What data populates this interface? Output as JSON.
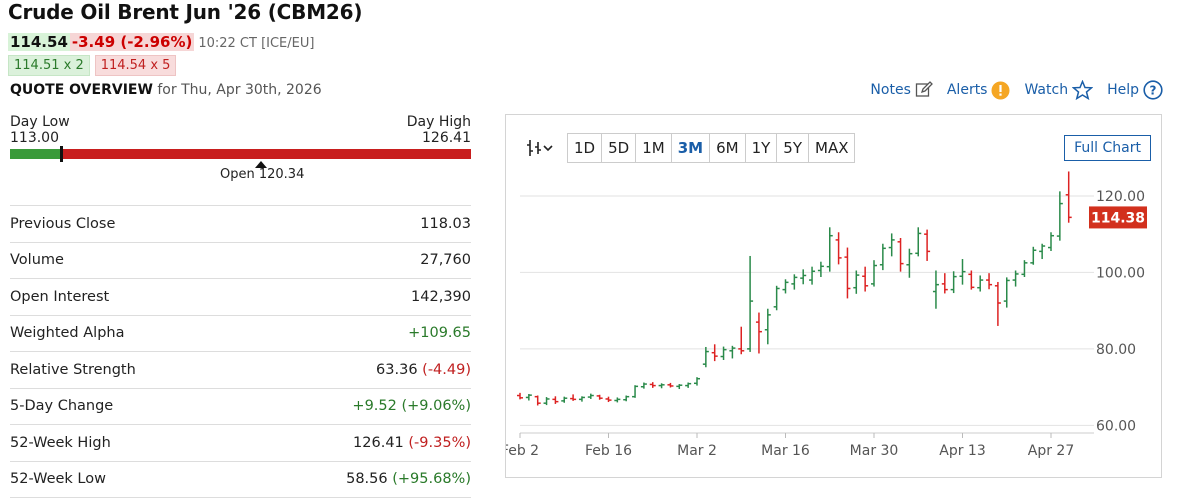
{
  "header": {
    "title": "Crude Oil Brent Jun '26 (CBM26)",
    "price": "114.54",
    "change": "-3.49 (-2.96%)",
    "time": "10:22 CT [ICE/EU]",
    "bid": "114.51 x 2",
    "ask": "114.54 x 5"
  },
  "overview": {
    "label": "QUOTE OVERVIEW",
    "date": "for Thu, Apr 30th, 2026"
  },
  "links": [
    "Notes",
    "Alerts",
    "Watch",
    "Help"
  ],
  "day_range": {
    "low_label": "Day Low",
    "high_label": "Day High",
    "low": "113.00",
    "high": "126.41",
    "open": "Open 120.34",
    "position": 0.11
  },
  "stats": [
    {
      "label": "Previous Close",
      "value": "118.03",
      "extra": ""
    },
    {
      "label": "Volume",
      "value": "27,760",
      "extra": ""
    },
    {
      "label": "Open Interest",
      "value": "142,390",
      "extra": ""
    },
    {
      "label": "Weighted Alpha",
      "value": "",
      "extra": "+109.65",
      "cls": "pos"
    },
    {
      "label": "Relative Strength",
      "value": "63.36 ",
      "extra": "(-4.49)",
      "cls": "neg"
    },
    {
      "label": "5-Day Change",
      "value": "",
      "extra": "+9.52 (+9.06%)",
      "cls": "pos"
    },
    {
      "label": "52-Week High",
      "value": "126.41 ",
      "extra": "(-9.35%)",
      "cls": "neg"
    },
    {
      "label": "52-Week Low",
      "value": "58.56 ",
      "extra": "(+95.68%)",
      "cls": "pos"
    }
  ],
  "chart_toolbar": {
    "periods": [
      "1D",
      "5D",
      "1M",
      "3M",
      "6M",
      "1Y",
      "5Y",
      "MAX"
    ],
    "active": "3M",
    "full_chart": "Full Chart"
  },
  "chart_data": {
    "type": "ohlc",
    "ylim": [
      58,
      126
    ],
    "yticks": [
      60,
      80,
      100,
      120
    ],
    "ytick_labels": [
      "60.00",
      "80.00",
      "100.00",
      "120.00"
    ],
    "x_labels": [
      "Feb 2",
      "Feb 16",
      "Mar 2",
      "Mar 16",
      "Mar 30",
      "Apr 13",
      "Apr 27"
    ],
    "x_label_index": [
      0,
      10,
      20,
      30,
      40,
      50,
      60
    ],
    "last_price_label": "114.38",
    "last_price": 114.38,
    "bars": [
      [
        67.8,
        68.5,
        66.8,
        67.2
      ],
      [
        67.3,
        68.2,
        66.5,
        67.9
      ],
      [
        67.5,
        67.8,
        65.2,
        65.8
      ],
      [
        65.8,
        67.4,
        65.3,
        66.9
      ],
      [
        66.8,
        67.6,
        65.6,
        66.2
      ],
      [
        66.4,
        67.5,
        65.9,
        67.1
      ],
      [
        67.0,
        68.1,
        66.4,
        66.8
      ],
      [
        66.8,
        67.6,
        66.2,
        67.3
      ],
      [
        67.4,
        68.3,
        66.9,
        67.8
      ],
      [
        67.7,
        68.0,
        66.7,
        67.1
      ],
      [
        66.9,
        67.5,
        66.1,
        66.6
      ],
      [
        66.5,
        67.3,
        66.0,
        66.8
      ],
      [
        66.7,
        67.8,
        66.3,
        67.5
      ],
      [
        67.5,
        70.5,
        67.2,
        70.2
      ],
      [
        70.1,
        71.2,
        69.6,
        70.8
      ],
      [
        70.7,
        71.3,
        69.8,
        70.4
      ],
      [
        70.4,
        71.0,
        69.7,
        70.6
      ],
      [
        70.6,
        71.1,
        69.9,
        70.3
      ],
      [
        70.2,
        70.8,
        69.5,
        70.5
      ],
      [
        70.4,
        71.2,
        69.8,
        70.9
      ],
      [
        71.0,
        72.6,
        70.4,
        72.2
      ],
      [
        76.0,
        80.5,
        75.2,
        79.3
      ],
      [
        79.0,
        81.2,
        76.8,
        78.1
      ],
      [
        78.0,
        80.6,
        77.1,
        79.8
      ],
      [
        79.5,
        80.8,
        77.5,
        80.2
      ],
      [
        80.0,
        85.8,
        78.6,
        79.5
      ],
      [
        80.0,
        104.3,
        79.2,
        92.5
      ],
      [
        87.0,
        89.5,
        78.8,
        84.5
      ],
      [
        85.0,
        90.5,
        81.2,
        88.9
      ],
      [
        91.0,
        96.5,
        90.1,
        95.8
      ],
      [
        95.5,
        98.2,
        94.5,
        97.4
      ],
      [
        97.0,
        99.5,
        95.5,
        98.7
      ],
      [
        98.5,
        100.8,
        96.9,
        99.2
      ],
      [
        98.0,
        101.5,
        96.8,
        100.3
      ],
      [
        100.5,
        102.8,
        98.8,
        101.6
      ],
      [
        101.5,
        111.8,
        100.2,
        109.6
      ],
      [
        108.5,
        110.5,
        102.1,
        103.8
      ],
      [
        104.0,
        106.5,
        93.2,
        95.8
      ],
      [
        96.0,
        100.5,
        94.4,
        99.3
      ],
      [
        99.0,
        101.5,
        95.0,
        96.5
      ],
      [
        97.0,
        103.2,
        96.3,
        101.8
      ],
      [
        102.0,
        107.5,
        100.6,
        106.3
      ],
      [
        106.5,
        110.2,
        104.2,
        108.5
      ],
      [
        108.0,
        109.0,
        100.2,
        102.3
      ],
      [
        102.0,
        106.2,
        98.6,
        104.9
      ],
      [
        105.0,
        111.8,
        104.2,
        110.2
      ],
      [
        110.0,
        111.2,
        103.0,
        105.5
      ],
      [
        95.0,
        100.5,
        90.5,
        96.8
      ],
      [
        97.0,
        99.8,
        94.5,
        95.5
      ],
      [
        95.5,
        100.3,
        94.6,
        98.9
      ],
      [
        99.0,
        103.5,
        96.8,
        100.2
      ],
      [
        99.5,
        100.5,
        95.5,
        96.1
      ],
      [
        96.0,
        99.2,
        95.0,
        98.0
      ],
      [
        98.0,
        99.8,
        95.6,
        96.8
      ],
      [
        96.5,
        97.5,
        86.0,
        92.0
      ],
      [
        92.5,
        98.7,
        90.8,
        97.9
      ],
      [
        98.0,
        100.5,
        96.3,
        99.6
      ],
      [
        99.5,
        103.2,
        98.8,
        102.5
      ],
      [
        102.5,
        106.7,
        102.0,
        105.8
      ],
      [
        105.5,
        107.5,
        103.5,
        106.9
      ],
      [
        106.5,
        110.5,
        105.6,
        109.6
      ],
      [
        109.5,
        121.2,
        108.3,
        118.0
      ],
      [
        120.3,
        126.4,
        113.0,
        114.4
      ]
    ]
  }
}
